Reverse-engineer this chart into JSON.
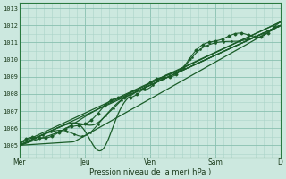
{
  "xlabel": "Pression niveau de la mer( hPa )",
  "bg_color": "#cce8df",
  "grid_minor_color": "#aad4c8",
  "grid_major_color": "#88c0b0",
  "line_color": "#1a5c28",
  "ylim": [
    1004.3,
    1013.3
  ],
  "yticks": [
    1005,
    1006,
    1007,
    1008,
    1009,
    1010,
    1011,
    1012,
    1013
  ],
  "day_labels": [
    "Mer",
    "Jeu",
    "Ven",
    "Sam",
    "D"
  ],
  "day_positions": [
    0,
    24,
    48,
    72,
    96
  ],
  "xlim": [
    0,
    96
  ]
}
